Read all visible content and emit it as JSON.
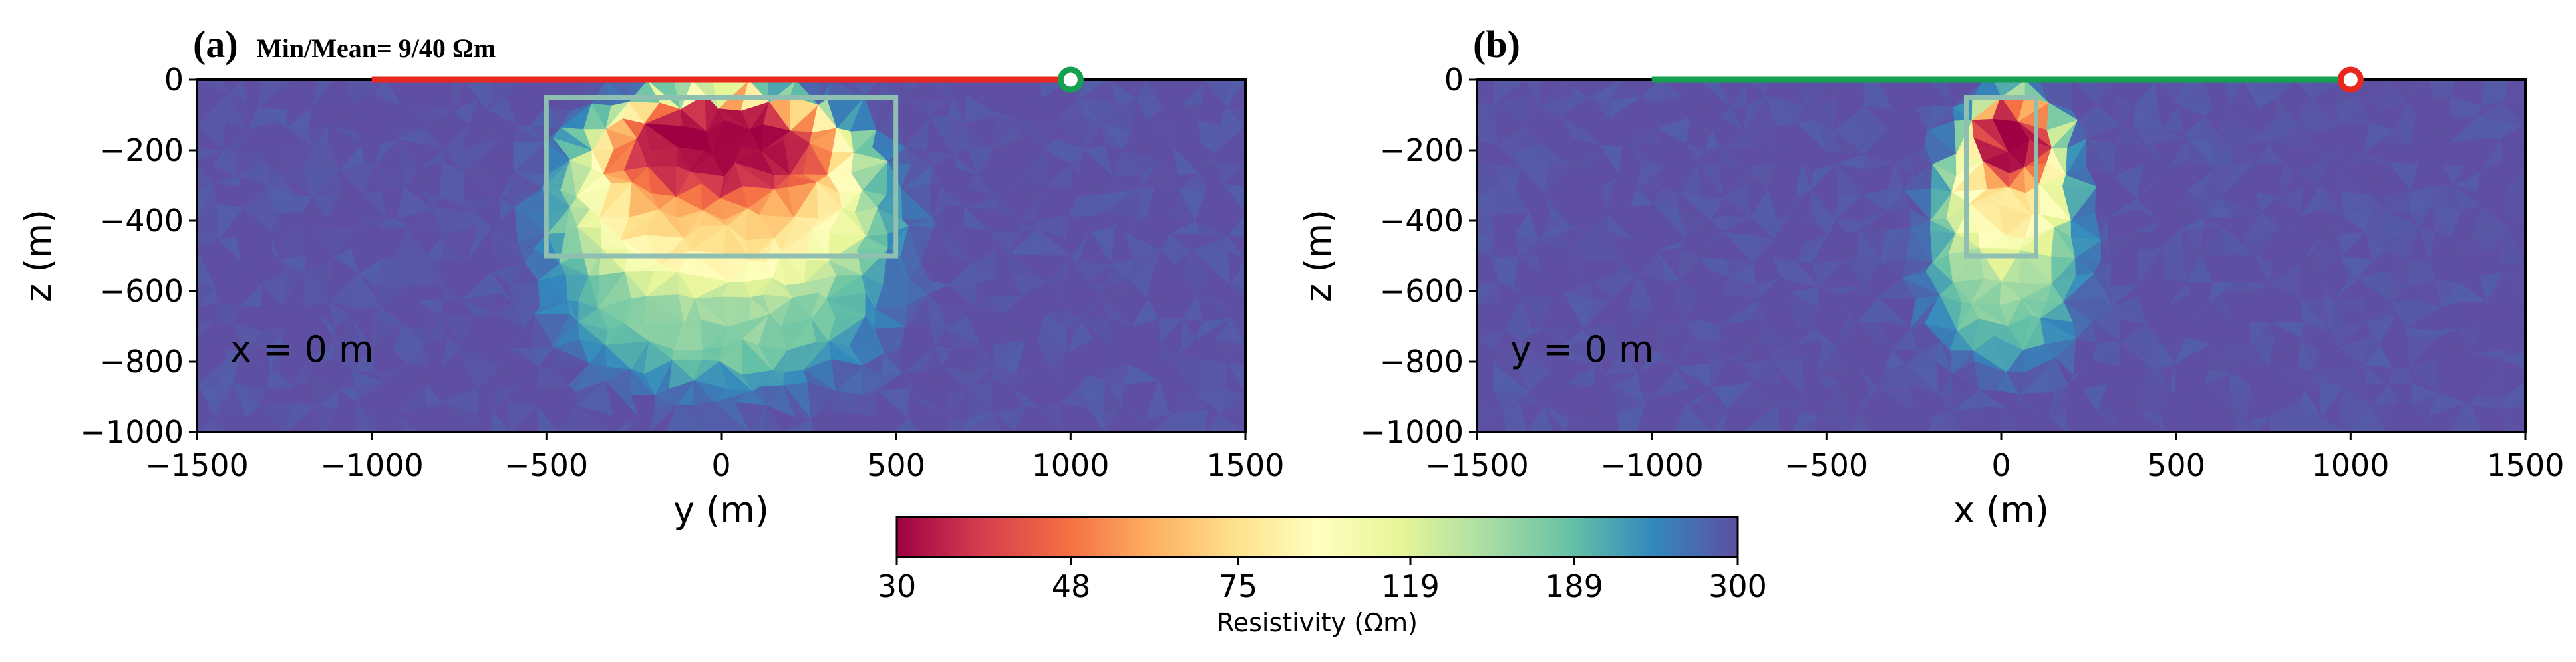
{
  "colors": {
    "background_high": "#5c4fa3",
    "frame": "#000000",
    "anomaly_box": "#8fbfb0",
    "line_a": "#e8281e",
    "line_b": "#14a050",
    "marker_a": "#14a050",
    "marker_b": "#e8281e"
  },
  "colormap": {
    "name": "Spectral",
    "stops": [
      "#9e0142",
      "#d53e4f",
      "#f46d43",
      "#fdae61",
      "#fee08b",
      "#ffffbf",
      "#e6f598",
      "#abdda4",
      "#66c2a5",
      "#3288bd",
      "#5e4fa2"
    ]
  },
  "colorbar": {
    "label": "Resistivity (Ωm)",
    "ticks": [
      "30",
      "48",
      "75",
      "119",
      "189",
      "300"
    ],
    "min": 30,
    "max": 300,
    "scale": "log"
  },
  "chart_data": [
    {
      "type": "heatmap",
      "panel_label": "(a)",
      "annotation": "Min/Mean= 9/40  Ωm",
      "inset_text": "x = 0 m",
      "xlabel": "y (m)",
      "ylabel": "z (m)",
      "xlim": [
        -1500,
        1500
      ],
      "ylim": [
        -1000,
        0
      ],
      "xticks": [
        -1500,
        -1000,
        -500,
        0,
        500,
        1000,
        1500
      ],
      "yticks": [
        0,
        -200,
        -400,
        -600,
        -800,
        -1000
      ],
      "xtick_labels": [
        "−1500",
        "−1000",
        "−500",
        "0",
        "500",
        "1000",
        "1500"
      ],
      "ytick_labels": [
        "0",
        "−200",
        "−400",
        "−600",
        "−800",
        "−1000"
      ],
      "anomaly_box": {
        "x": [
          -500,
          500
        ],
        "z": [
          -50,
          -500
        ]
      },
      "survey_line": {
        "x": [
          -1000,
          1000
        ],
        "z": 0
      },
      "receiver_marker": {
        "x": 1000,
        "z": 0
      },
      "background_resistivity": 300,
      "features": [
        {
          "x": 0,
          "z": -600,
          "sx": 560,
          "sz": 330,
          "rho": 160
        },
        {
          "x": 0,
          "z": -380,
          "sx": 540,
          "sz": 250,
          "rho": 75
        },
        {
          "x": 0,
          "z": -230,
          "sx": 470,
          "sz": 200,
          "rho": 48
        },
        {
          "x": 0,
          "z": -170,
          "sx": 380,
          "sz": 170,
          "rho": 30
        }
      ]
    },
    {
      "type": "heatmap",
      "panel_label": "(b)",
      "annotation": "",
      "inset_text": "y = 0 m",
      "xlabel": "x (m)",
      "ylabel": "z (m)",
      "xlim": [
        -1500,
        1500
      ],
      "ylim": [
        -1000,
        0
      ],
      "xticks": [
        -1500,
        -1000,
        -500,
        0,
        500,
        1000,
        1500
      ],
      "yticks": [
        0,
        -200,
        -400,
        -600,
        -800,
        -1000
      ],
      "xtick_labels": [
        "−1500",
        "−1000",
        "−500",
        "0",
        "500",
        "1000",
        "1500"
      ],
      "ytick_labels": [
        "0",
        "−200",
        "−400",
        "−600",
        "−800",
        "−1000"
      ],
      "anomaly_box": {
        "x": [
          -100,
          100
        ],
        "z": [
          -50,
          -500
        ]
      },
      "survey_line": {
        "x": [
          -1000,
          1000
        ],
        "z": 0
      },
      "receiver_marker": {
        "x": 1000,
        "z": 0
      },
      "background_resistivity": 300,
      "features": [
        {
          "x": 10,
          "z": -520,
          "sx": 270,
          "sz": 340,
          "rho": 160
        },
        {
          "x": 20,
          "z": -300,
          "sx": 220,
          "sz": 260,
          "rho": 80
        },
        {
          "x": 40,
          "z": -170,
          "sx": 150,
          "sz": 160,
          "rho": 45
        },
        {
          "x": 30,
          "z": -170,
          "sx": 110,
          "sz": 130,
          "rho": 30
        }
      ]
    }
  ]
}
